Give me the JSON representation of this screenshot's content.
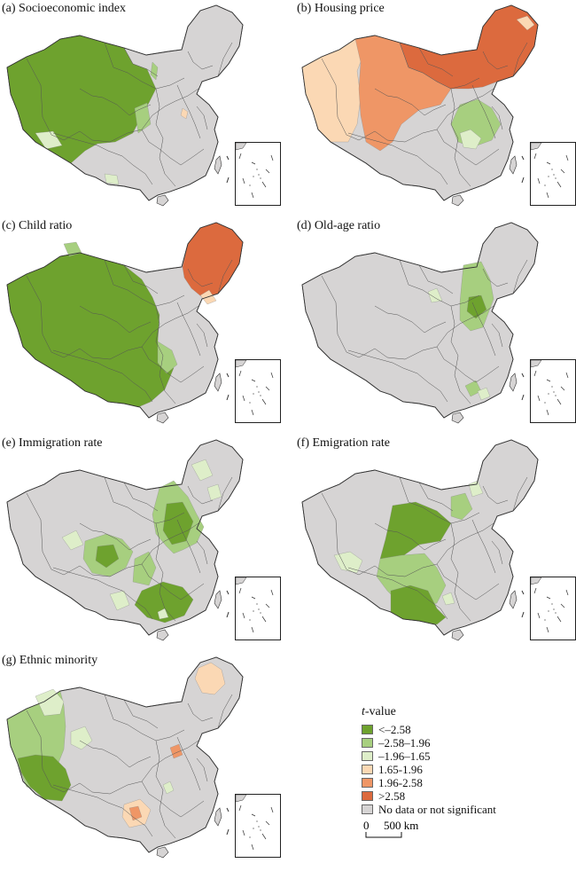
{
  "colors": {
    "lt258": "#6ea22e",
    "m258_196": "#a7cf7f",
    "m196_165": "#deeec9",
    "p165_196": "#fbd8b4",
    "p196_258": "#ef9666",
    "gt258": "#dc6a3e",
    "nodata": "#d6d4d4",
    "border": "#555555"
  },
  "panels": [
    {
      "label": "(a) Socioeconomic index"
    },
    {
      "label": "(b) Housing price"
    },
    {
      "label": "(c) Child ratio"
    },
    {
      "label": "(d) Old-age ratio"
    },
    {
      "label": "(e) Immigration rate"
    },
    {
      "label": "(f) Emigration rate"
    },
    {
      "label": "(g) Ethnic minority"
    }
  ],
  "legend": {
    "title_italic": "t",
    "title_rest": "-value",
    "items": [
      {
        "label": "<–2.58",
        "color_key": "lt258"
      },
      {
        "label": "–2.58–1.96",
        "color_key": "m258_196"
      },
      {
        "label": "–1.96–1.65",
        "color_key": "m196_165"
      },
      {
        "label": "1.65-1.96",
        "color_key": "p165_196"
      },
      {
        "label": "1.96-2.58",
        "color_key": "p196_258"
      },
      {
        "label": ">2.58",
        "color_key": "gt258"
      },
      {
        "label": "No data or not significant",
        "color_key": "nodata"
      }
    ]
  },
  "scale": {
    "zero": "0",
    "distance": "500 km"
  }
}
